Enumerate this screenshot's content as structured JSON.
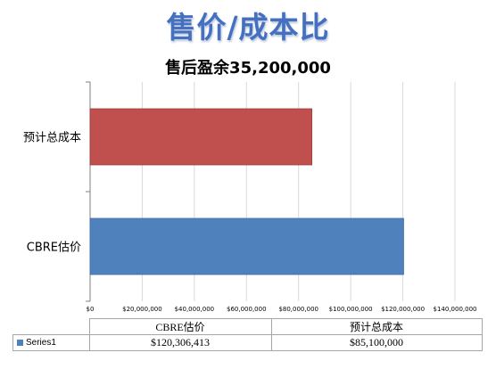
{
  "slide": {
    "title": "售价/成本比"
  },
  "chart_data": {
    "type": "bar",
    "orientation": "horizontal",
    "title": "售后盈余35,200,000",
    "categories": [
      "预计总成本",
      "CBRE估价"
    ],
    "series": [
      {
        "name": "Series1",
        "values": [
          85100000,
          120306413
        ]
      }
    ],
    "bar_colors": [
      "#c0504d",
      "#4f81bd"
    ],
    "xlim": [
      0,
      140000000
    ],
    "x_ticks": [
      0,
      20000000,
      40000000,
      60000000,
      80000000,
      100000000,
      120000000,
      140000000
    ],
    "x_tick_labels": [
      "$0",
      "$20,000,000",
      "$40,000,000",
      "$60,000,000",
      "$80,000,000",
      "$100,000,000",
      "$120,000,000",
      "$140,000,000"
    ],
    "grid": true,
    "xlabel": "",
    "ylabel": ""
  },
  "data_table": {
    "headers": [
      "CBRE估价",
      "预计总成本"
    ],
    "rows": [
      {
        "series": "Series1",
        "values": [
          "$120,306,413",
          "$85,100,000"
        ]
      }
    ]
  }
}
